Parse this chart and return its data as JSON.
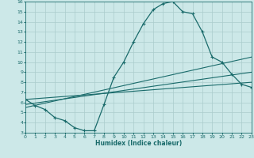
{
  "xlabel": "Humidex (Indice chaleur)",
  "bg_color": "#cce8e8",
  "grid_color": "#aacccc",
  "line_color": "#1a6b6b",
  "xmin": 0,
  "xmax": 23,
  "ymin": 3,
  "ymax": 16,
  "line1_x": [
    0,
    1,
    2,
    3,
    4,
    5,
    6,
    7,
    8,
    9,
    10,
    11,
    12,
    13,
    14,
    15,
    16,
    17,
    18,
    19,
    20,
    21,
    22,
    23
  ],
  "line1_y": [
    6.3,
    5.7,
    5.3,
    4.5,
    4.2,
    3.5,
    3.2,
    3.2,
    5.8,
    8.5,
    10.0,
    12.0,
    13.8,
    15.2,
    15.8,
    16.0,
    15.0,
    14.8,
    13.0,
    10.5,
    10.0,
    8.8,
    7.8,
    7.5
  ],
  "line2_x": [
    0,
    23
  ],
  "line2_y": [
    6.3,
    8.0
  ],
  "line3_x": [
    0,
    23
  ],
  "line3_y": [
    5.8,
    9.0
  ],
  "line4_x": [
    0,
    23
  ],
  "line4_y": [
    5.5,
    10.5
  ],
  "yticks": [
    3,
    4,
    5,
    6,
    7,
    8,
    9,
    10,
    11,
    12,
    13,
    14,
    15,
    16
  ],
  "xticks": [
    0,
    1,
    2,
    3,
    4,
    5,
    6,
    7,
    8,
    9,
    10,
    11,
    12,
    13,
    14,
    15,
    16,
    17,
    18,
    19,
    20,
    21,
    22,
    23
  ]
}
